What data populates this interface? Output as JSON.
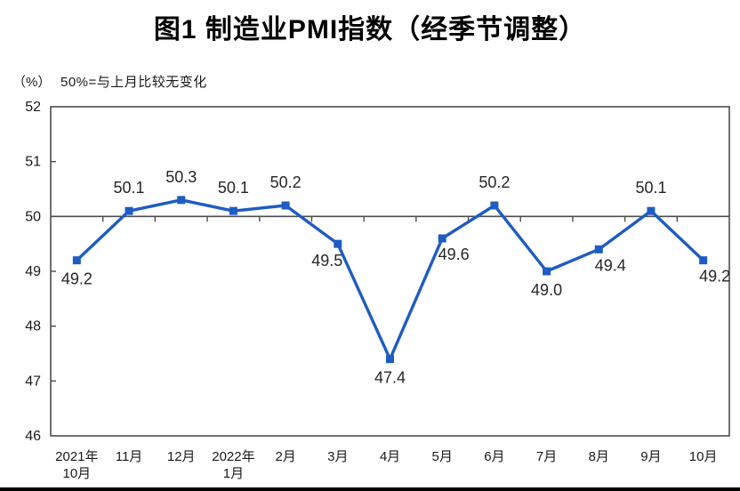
{
  "title": "图1 制造业PMI指数（经季节调整）",
  "axis_note": {
    "unit": "（%）",
    "note": "50%=与上月比较无变化"
  },
  "colors": {
    "line": "#1E5CC2",
    "marker": "#1E5CC2",
    "axis": "#4d4d4d",
    "text": "#1a1a1a",
    "data_label": "#262626",
    "bottom_border": "#000000"
  },
  "chart_data": {
    "type": "line",
    "title": "图1 制造业PMI指数（经季节调整）",
    "categories": [
      "2021年\n10月",
      "11月",
      "12月",
      "2022年\n1月",
      "2月",
      "3月",
      "4月",
      "5月",
      "6月",
      "7月",
      "8月",
      "9月",
      "10月"
    ],
    "values": [
      49.2,
      50.1,
      50.3,
      50.1,
      50.2,
      49.5,
      47.4,
      49.6,
      50.2,
      49.0,
      49.4,
      50.1,
      49.2
    ],
    "point_labels": [
      "49.2",
      "50.1",
      "50.3",
      "50.1",
      "50.2",
      "49.5",
      "47.4",
      "49.6",
      "50.2",
      "49.0",
      "49.4",
      "50.1",
      "49.2"
    ],
    "label_positions": [
      "below",
      "above",
      "above",
      "above",
      "above",
      "below-left",
      "below",
      "below-right",
      "above",
      "below",
      "below-right",
      "above",
      "below-right"
    ],
    "ylabel": "（%）",
    "xlabel": "",
    "ylim": [
      46,
      52
    ],
    "yticks": [
      46,
      47,
      48,
      49,
      50,
      51,
      52
    ],
    "reference_line": 50,
    "marker": "square",
    "grid": false,
    "legend": "none"
  }
}
